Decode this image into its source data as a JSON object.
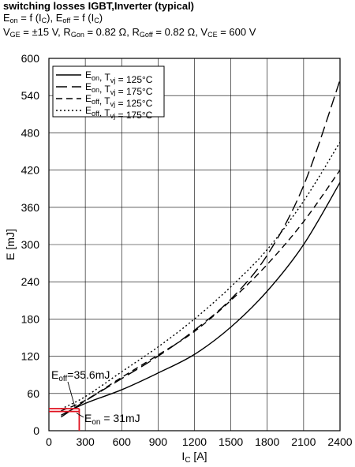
{
  "header": {
    "title": "switching losses IGBT,Inverter (typical)",
    "eq": [
      {
        "main": "E",
        "sub": "on"
      },
      {
        "main": " = f (I",
        "sub": "C"
      },
      {
        "main": "), E",
        "sub": "off"
      },
      {
        "main": " = f (I",
        "sub": "C"
      },
      {
        "main": ")",
        "sub": ""
      }
    ],
    "cond": [
      {
        "main": "V",
        "sub": "GE"
      },
      {
        "main": " = ±15 V, R",
        "sub": "Gon"
      },
      {
        "main": " = 0.82 Ω, R",
        "sub": "Goff"
      },
      {
        "main": " = 0.82 Ω, V",
        "sub": "CE"
      },
      {
        "main": " = 600 V",
        "sub": ""
      }
    ]
  },
  "chart_data": {
    "type": "line",
    "title": "switching losses IGBT,Inverter (typical)",
    "xlabel": {
      "main": "I",
      "sub": "C",
      "unit": " [A]"
    },
    "ylabel": "E [mJ]",
    "xlim": [
      0,
      2400
    ],
    "ylim": [
      0,
      600
    ],
    "xticks": [
      0,
      300,
      600,
      900,
      1200,
      1500,
      1800,
      2100,
      2400
    ],
    "yticks": [
      0,
      60,
      120,
      180,
      240,
      300,
      360,
      420,
      480,
      540,
      600
    ],
    "grid": true,
    "legend_position": "top-left",
    "series": [
      {
        "name": "Eon, Tvj = 125°C",
        "legend": [
          {
            "t": "E",
            "s": "on"
          },
          {
            "t": ", T",
            "s": "vj"
          },
          {
            "t": " = 125°C",
            "s": ""
          }
        ],
        "dash": "solid",
        "x": [
          100,
          300,
          600,
          900,
          1200,
          1500,
          1800,
          2100,
          2400
        ],
        "y": [
          25,
          44,
          66,
          93,
          123,
          167,
          225,
          300,
          400
        ]
      },
      {
        "name": "Eon, Tvj = 175°C",
        "legend": [
          {
            "t": "E",
            "s": "on"
          },
          {
            "t": ", T",
            "s": "vj"
          },
          {
            "t": " = 175°C",
            "s": ""
          }
        ],
        "dash": "long",
        "x": [
          100,
          300,
          600,
          900,
          1200,
          1500,
          1800,
          2100,
          2400
        ],
        "y": [
          22,
          48,
          84,
          120,
          162,
          212,
          283,
          395,
          565
        ]
      },
      {
        "name": "Eoff, Tvj = 125°C",
        "legend": [
          {
            "t": "E",
            "s": "off"
          },
          {
            "t": ", T",
            "s": "vj"
          },
          {
            "t": " = 125°C",
            "s": ""
          }
        ],
        "dash": "medium",
        "x": [
          100,
          300,
          600,
          900,
          1200,
          1500,
          1800,
          2100,
          2400
        ],
        "y": [
          32,
          49,
          86,
          122,
          160,
          210,
          268,
          337,
          420
        ]
      },
      {
        "name": "Eoff, Tvj = 175°C",
        "legend": [
          {
            "t": "E",
            "s": "off"
          },
          {
            "t": ", T",
            "s": "vj"
          },
          {
            "t": " = 175°C",
            "s": ""
          }
        ],
        "dash": "dotted",
        "x": [
          100,
          300,
          600,
          900,
          1200,
          1500,
          1800,
          2100,
          2400
        ],
        "y": [
          35,
          55,
          95,
          135,
          180,
          232,
          292,
          370,
          465
        ]
      }
    ],
    "annotations": [
      {
        "main": "E",
        "sub": "off",
        "rest": "=35.6mJ",
        "value": 35.6,
        "x": 250
      },
      {
        "main": "E",
        "sub": "on",
        "rest": " = 31mJ",
        "value": 31,
        "x": 250
      }
    ],
    "highlight_color": "#e0101e"
  }
}
